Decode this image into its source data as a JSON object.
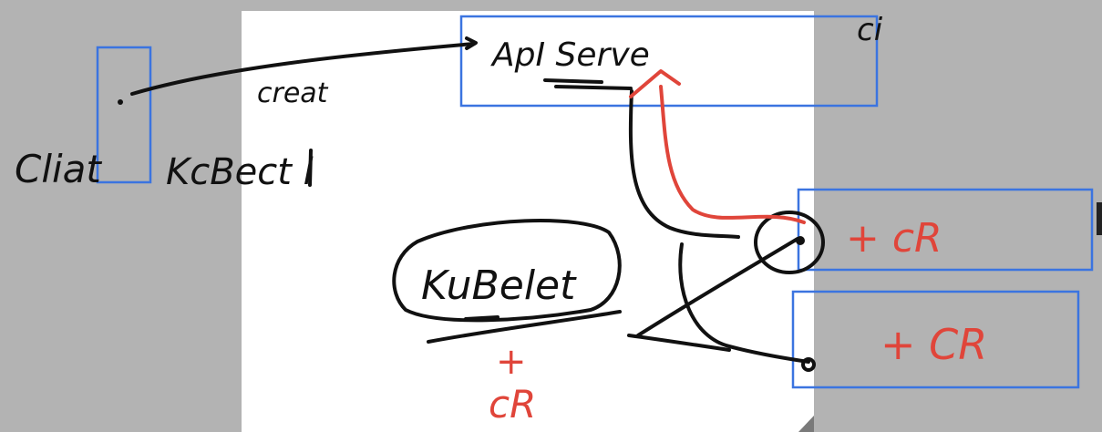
{
  "labels": {
    "client": "Cliat",
    "kubectl": "KcBect l",
    "create": "creat",
    "api_server": "ApI Serve",
    "ci": "ci",
    "kubelet": "KuBelet",
    "plus_cr_bottom_plus": "+",
    "plus_cr_bottom_cr": "cR",
    "cr_box_1": "+ cR",
    "cr_box_2": "+ CR"
  },
  "colors": {
    "box_border": "#3b74e0",
    "ink": "#111111",
    "annotation_red": "#e0453a",
    "background": "#b3b3b3",
    "sheet": "#ffffff"
  }
}
